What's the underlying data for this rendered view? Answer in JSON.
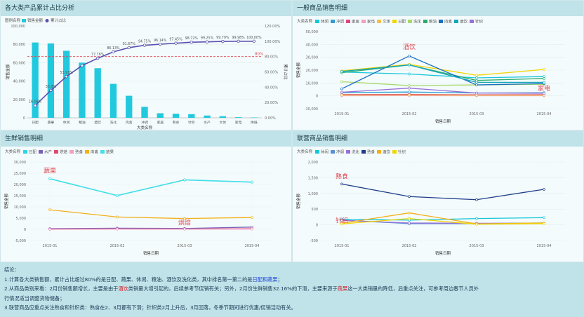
{
  "panels": {
    "p1": {
      "title": "各大类产品累计占比分析"
    },
    "p2": {
      "title": "一般商品销售明细"
    },
    "p3": {
      "title": "生鲜销售明细"
    },
    "p4": {
      "title": "联营商品销售明细"
    }
  },
  "chart_data": [
    {
      "id": "pareto",
      "type": "bar",
      "legend_title": "图例名称",
      "legend": [
        "销售金额",
        "累计占比"
      ],
      "categories": [
        "日配",
        "蔬果",
        "休闲",
        "粮油",
        "酒饮",
        "洗化",
        "肉禽",
        "冲调",
        "家居",
        "熟食",
        "针织",
        "水产",
        "文体",
        "家电",
        "烘焙"
      ],
      "values": [
        82000,
        81000,
        73000,
        60000,
        54000,
        37000,
        24000,
        12000,
        5000,
        4500,
        4000,
        2500,
        1800,
        700,
        400
      ],
      "line_values": [
        16.08,
        35.8,
        53.91,
        68.28,
        77.76,
        86.13,
        91.67,
        94.75,
        96.14,
        97.45,
        98.72,
        99.25,
        99.79,
        99.98,
        100.0
      ],
      "line_labels": [
        "16.08%",
        "35.8%",
        "53.91%",
        "",
        "77.76%",
        "86.13%",
        "91.67%",
        "94.75%",
        "96.14%",
        "97.45%",
        "98.72%",
        "99.25%",
        "99.79%",
        "99.98%",
        "100.00%"
      ],
      "threshold": 80,
      "threshold_label": "80%",
      "xlabel": "大类名称",
      "ylabel": "销售金额",
      "y2label": "累计占比",
      "ylim": [
        0,
        100000
      ],
      "y2lim": [
        0,
        120
      ],
      "yticks": [
        "0",
        "20,000",
        "40,000",
        "60,000",
        "80,000",
        "100,000"
      ],
      "y2ticks": [
        "0.00%",
        "20.00%",
        "40.00%",
        "60.00%",
        "80.00%",
        "100.00%",
        "120.00%"
      ]
    },
    {
      "id": "general",
      "type": "line",
      "legend_title": "大类名称",
      "x": [
        "2015-01",
        "2015-02",
        "2015-03",
        "2015-04"
      ],
      "xlabel": "销售日期",
      "ylabel": "销售金额",
      "ylim": [
        -10000,
        50000
      ],
      "yticks": [
        "-10,000",
        "0",
        "10,000",
        "20,000",
        "30,000",
        "40,000",
        "50,000"
      ],
      "series": [
        {
          "name": "休闲",
          "color": "#16c7d9",
          "values": [
            18500,
            17000,
            14000,
            15000
          ]
        },
        {
          "name": "冲调",
          "color": "#2e9cd1",
          "values": [
            2500,
            3000,
            2200,
            2400
          ]
        },
        {
          "name": "家居",
          "color": "#e0457b",
          "values": [
            1000,
            1200,
            800,
            900
          ]
        },
        {
          "name": "家电",
          "color": "#f29fc3",
          "values": [
            100,
            150,
            80,
            100
          ]
        },
        {
          "name": "文体",
          "color": "#f0c24a",
          "values": [
            600,
            700,
            500,
            500
          ]
        },
        {
          "name": "日配",
          "color": "#f2d600",
          "values": [
            19500,
            24500,
            16000,
            20500
          ]
        },
        {
          "name": "洗化",
          "color": "#a6d96a",
          "values": [
            11000,
            8000,
            8500,
            9000
          ]
        },
        {
          "name": "粮油",
          "color": "#2eaa6a",
          "values": [
            18000,
            24000,
            12000,
            13500
          ]
        },
        {
          "name": "肉禽",
          "color": "#1a6fc1",
          "values": [
            5500,
            31000,
            8500,
            9500
          ]
        },
        {
          "name": "酒饮",
          "color": "#13a6b8",
          "values": [
            19000,
            24000,
            10500,
            10500
          ]
        },
        {
          "name": "针织",
          "color": "#9a6fd6",
          "values": [
            2800,
            6000,
            2200,
            2000
          ]
        }
      ],
      "annotations": [
        {
          "text": "酒饮",
          "series": "肉禽",
          "index": 1,
          "dy": -10
        },
        {
          "text": "家电",
          "series": "针织",
          "index": 3,
          "dy": -4
        }
      ]
    },
    {
      "id": "fresh",
      "type": "line",
      "legend_title": "大类名称",
      "x": [
        "2015-01",
        "2015-02",
        "2015-03",
        "2015-04"
      ],
      "xlabel": "销售日期",
      "ylabel": "销售金额",
      "ylim": [
        -5000,
        30000
      ],
      "yticks": [
        "-5,000",
        "0",
        "5,000",
        "10,000",
        "15,000",
        "20,000",
        "25,000",
        "30,000"
      ],
      "series": [
        {
          "name": "日配",
          "color": "#2bd6e6",
          "values": [
            22500,
            15000,
            22000,
            21000
          ]
        },
        {
          "name": "水产",
          "color": "#7a5fb8",
          "values": [
            300,
            500,
            400,
            1000
          ]
        },
        {
          "name": "烘焙",
          "color": "#e04a6a",
          "values": [
            100,
            200,
            150,
            250
          ]
        },
        {
          "name": "熟食",
          "color": "#f29fc3",
          "values": [
            0,
            100,
            80,
            100
          ]
        },
        {
          "name": "肉禽",
          "color": "#f2b01c",
          "values": [
            8700,
            5500,
            4800,
            5300
          ]
        },
        {
          "name": "蔬果",
          "color": "#45e0e8",
          "values": [
            22600,
            15100,
            22100,
            21100
          ]
        }
      ],
      "annotations": [
        {
          "text": "蔬果",
          "series": "蔬果",
          "index": 0,
          "dy": -8
        },
        {
          "text": "烘焙",
          "series": "烘焙",
          "index": 2,
          "dy": -6
        }
      ]
    },
    {
      "id": "joint",
      "type": "line",
      "legend_title": "大类名称",
      "x": [
        "2015-01",
        "2015-02",
        "2015-03",
        "2015-04"
      ],
      "xlabel": "销售日期",
      "ylabel": "销售金额",
      "ylim": [
        -500,
        2000
      ],
      "yticks": [
        "-500",
        "0",
        "500",
        "1,000",
        "1,500",
        "2,000"
      ],
      "series": [
        {
          "name": "休闲",
          "color": "#16c7d9",
          "values": [
            180,
            150,
            200,
            230
          ]
        },
        {
          "name": "冲调",
          "color": "#5b8fd6",
          "values": [
            150,
            40,
            40,
            60
          ]
        },
        {
          "name": "洗化",
          "color": "#9a6fd6",
          "values": [
            140,
            60,
            50,
            50
          ]
        },
        {
          "name": "熟食",
          "color": "#1f3f8a",
          "values": [
            1300,
            900,
            800,
            1130
          ]
        },
        {
          "name": "酒饮",
          "color": "#f2b01c",
          "values": [
            50,
            380,
            30,
            60
          ]
        },
        {
          "name": "针织",
          "color": "#f2d600",
          "values": [
            30,
            200,
            20,
            40
          ]
        }
      ],
      "annotations": [
        {
          "text": "熟食",
          "series": "熟食",
          "index": 0,
          "dy": -8
        },
        {
          "text": "针织",
          "series": "针织",
          "index": 0,
          "dy": -2
        }
      ]
    }
  ],
  "conclusion": {
    "title": "结论：",
    "line1_a": "1.计算各大类销售额，累计占比超过80%的是日配、蔬果、休闲、粮油、酒饮及洗化类，其中排名第一第二的是",
    "line1_hl": "日配和蔬果",
    "line1_b": "；",
    "line2_a": "2.从商品类别来看：2月份销售额增长，主要是由于",
    "line2_hl1": "酒饮",
    "line2_b": "类销量大增引起的，后续参考节促销有关；另外，2月份生鲜销售32.16%的下滑，主要来源于",
    "line2_hl2": "蔬果",
    "line2_c": "这一大类销量的降低，后重点关注，可参考周边春节人员外",
    "line2_d": "行情况适当调整货物储备；",
    "line3": "3.联营商品应重点关注熟食和针织类：熟食在2、3月都有下滑；针织类2月上升后，3月回落，冬季节期间进行优惠/促销活动有关。"
  }
}
